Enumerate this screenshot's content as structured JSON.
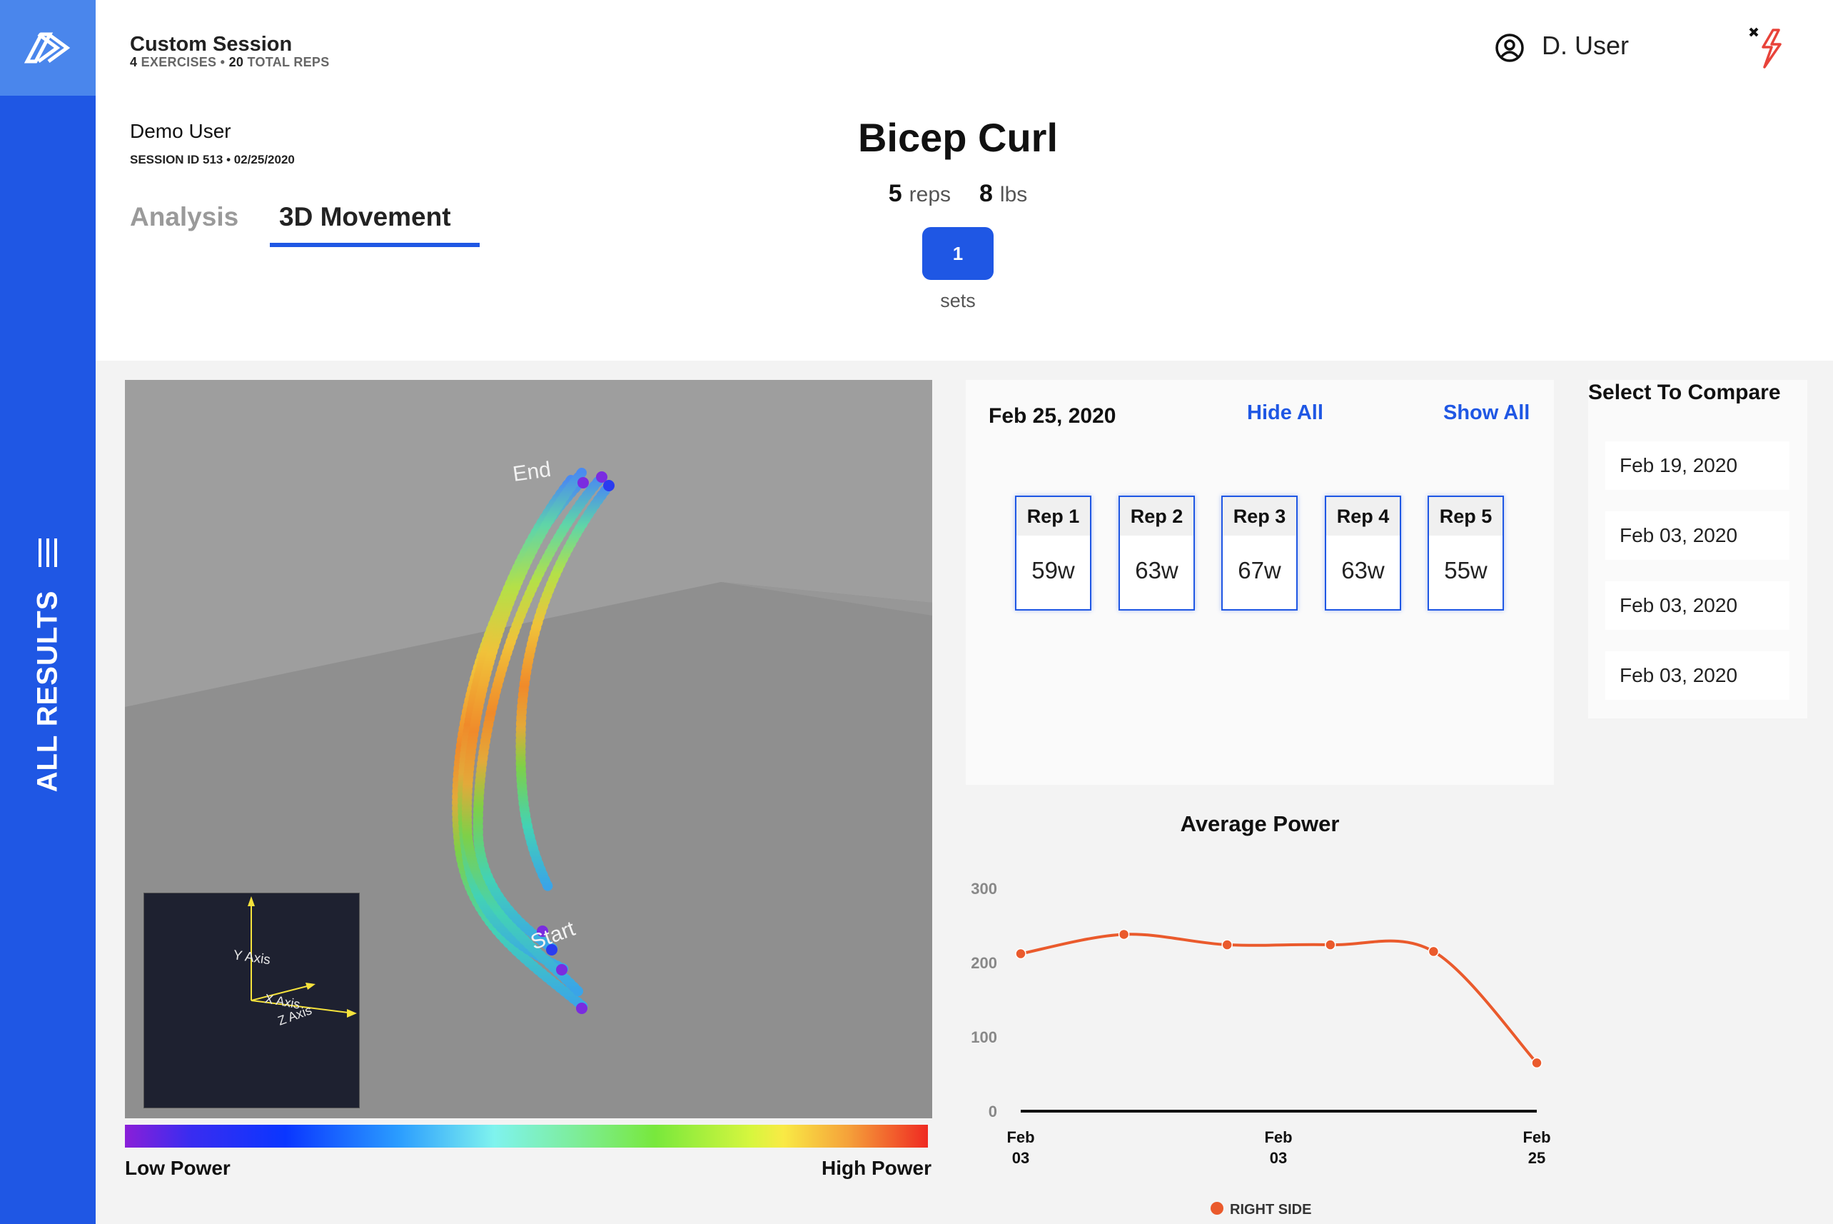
{
  "session": {
    "title": "Custom Session",
    "exercises_count": "4",
    "exercises_label": "EXERCISES",
    "reps_total": "20",
    "reps_total_label": "TOTAL REPS",
    "user_full": "Demo User",
    "session_id_line": "SESSION ID 513 • 02/25/2020"
  },
  "header": {
    "user_name": "D. User"
  },
  "sidebar": {
    "label": "ALL RESULTS"
  },
  "tabs": [
    {
      "label": "Analysis",
      "active": false
    },
    {
      "label": "3D Movement",
      "active": true
    }
  ],
  "exercise": {
    "name": "Bicep Curl",
    "reps": "5",
    "reps_unit": "reps",
    "weight": "8",
    "weight_unit": "lbs",
    "set_value": "1",
    "sets_label": "sets"
  },
  "viewport": {
    "label_end": "End",
    "label_start": "Start",
    "axis_y": "Y Axis",
    "axis_x": "X Axis",
    "axis_z": "Z Axis"
  },
  "legend": {
    "low": "Low Power",
    "high": "High Power"
  },
  "reps_panel": {
    "date": "Feb 25, 2020",
    "hide_all": "Hide All",
    "show_all": "Show All",
    "reps": [
      {
        "label": "Rep 1",
        "value": "59w"
      },
      {
        "label": "Rep 2",
        "value": "63w"
      },
      {
        "label": "Rep 3",
        "value": "67w"
      },
      {
        "label": "Rep 4",
        "value": "63w"
      },
      {
        "label": "Rep 5",
        "value": "55w"
      }
    ]
  },
  "compare": {
    "title": "Select To Compare",
    "items": [
      "Feb 19, 2020",
      "Feb 03, 2020",
      "Feb 03, 2020",
      "Feb 03, 2020"
    ]
  },
  "chart_data": {
    "type": "line",
    "title": "Average Power",
    "ylim": [
      0,
      300
    ],
    "yticks": [
      0,
      100,
      200,
      300
    ],
    "xtick_labels": [
      [
        "Feb",
        "03"
      ],
      [
        "Feb",
        "03"
      ],
      [
        "Feb",
        "25"
      ]
    ],
    "series": [
      {
        "name": "RIGHT SIDE",
        "color": "#ea5a2c",
        "values": [
          212,
          238,
          224,
          224,
          215,
          65
        ]
      }
    ],
    "legend_position": "bottom-center"
  },
  "colors": {
    "accent": "#1f57e4",
    "sidebar_logo": "#4a86ec",
    "series": "#ea5a2c"
  }
}
